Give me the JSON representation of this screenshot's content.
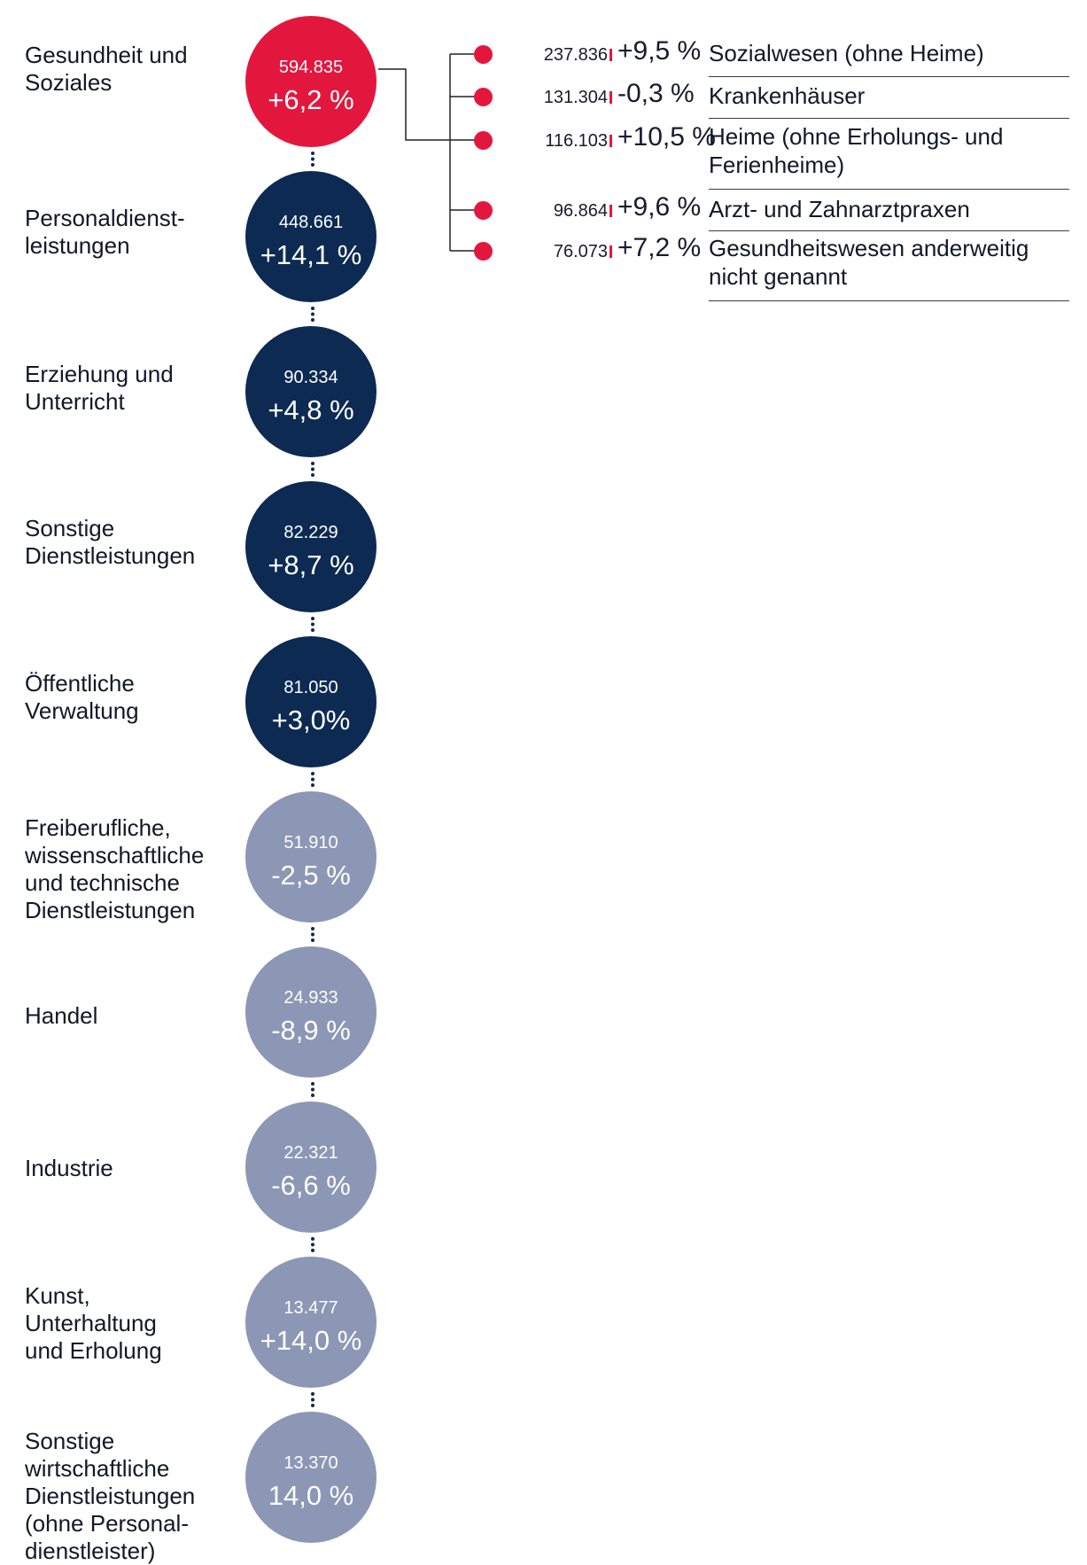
{
  "colors": {
    "highlight": "#e3173e",
    "dark_navy": "#0c2a52",
    "grey_blue": "#8b97b5",
    "connector": "#10284d"
  },
  "sectors": [
    {
      "label": "Gesundheit und\nSoziales",
      "count": "594.835",
      "change": "+6,2 %",
      "color": "#e3173e"
    },
    {
      "label": "Personaldienst-\nleistungen",
      "count": "448.661",
      "change": "+14,1 %",
      "color": "#0c2a52"
    },
    {
      "label": "Erziehung und\nUnterricht",
      "count": "90.334",
      "change": "+4,8 %",
      "color": "#0c2a52"
    },
    {
      "label": "Sonstige\nDienstleistungen",
      "count": "82.229",
      "change": "+8,7 %",
      "color": "#0c2a52"
    },
    {
      "label": "Öffentliche\nVerwaltung",
      "count": "81.050",
      "change": "+3,0%",
      "color": "#0c2a52"
    },
    {
      "label": "Freiberufliche,\nwissenschaftliche\nund technische\nDienstleistungen",
      "count": "51.910",
      "change": "-2,5 %",
      "color": "#8b97b5"
    },
    {
      "label": "Handel",
      "count": "24.933",
      "change": "-8,9 %",
      "color": "#8b97b5"
    },
    {
      "label": "Industrie",
      "count": "22.321",
      "change": "-6,6 %",
      "color": "#8b97b5"
    },
    {
      "label": "Kunst,\nUnterhaltung\nund Erholung",
      "count": "13.477",
      "change": "+14,0 %",
      "color": "#8b97b5"
    },
    {
      "label": "Sonstige\nwirtschaftliche\nDienstleistungen\n(ohne Personal-\ndienstleister)",
      "count": "13.370",
      "change": "14,0 %",
      "color": "#8b97b5"
    }
  ],
  "subsectors": [
    {
      "count": "237.836",
      "change": "+9,5 %",
      "label": "Sozialwesen (ohne Heime)"
    },
    {
      "count": "131.304",
      "change": "-0,3 %",
      "label": "Krankenhäuser"
    },
    {
      "count": "116.103",
      "change": "+10,5 %",
      "label": "Heime (ohne Erholungs- und Ferienheime)"
    },
    {
      "count": "96.864",
      "change": "+9,6 %",
      "label": "Arzt- und Zahnarztpraxen"
    },
    {
      "count": "76.073",
      "change": "+7,2 %",
      "label": "Gesundheitswesen anderweitig nicht genannt"
    }
  ]
}
